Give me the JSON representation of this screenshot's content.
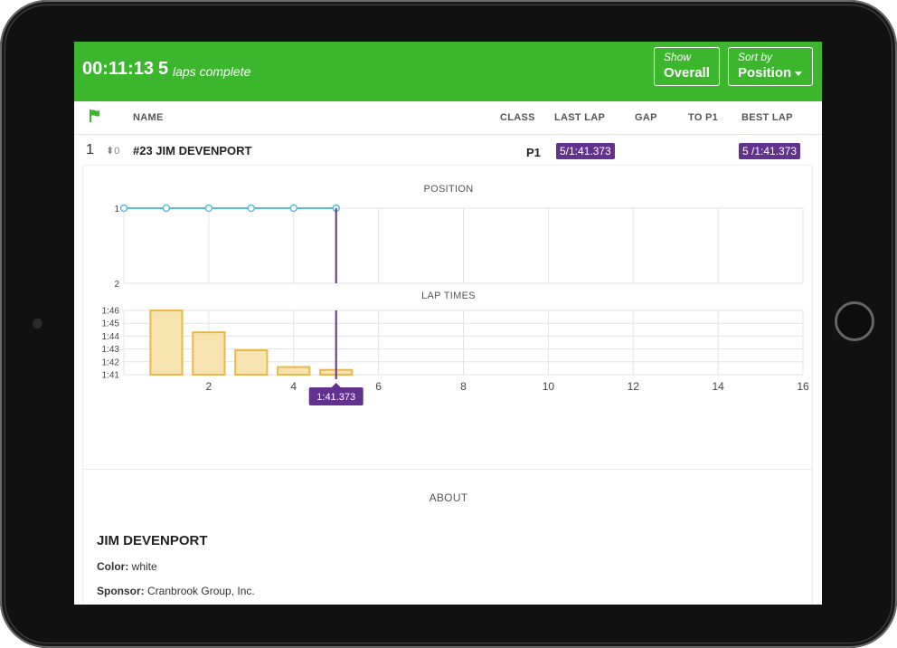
{
  "topbar": {
    "elapsed": "00:11:13",
    "laps_count": "5",
    "laps_label": "laps complete",
    "show_label": "Show",
    "show_value": "Overall",
    "sort_label": "Sort by",
    "sort_value": "Position"
  },
  "columns": {
    "name": "NAME",
    "class": "CLASS",
    "last_lap": "LAST LAP",
    "gap": "GAP",
    "to_p1": "TO P1",
    "best_lap": "BEST LAP"
  },
  "driver_row": {
    "position": "1",
    "delta": "0",
    "name": "#23 JIM DEVENPORT",
    "class": "P1",
    "last_lap": "5/1:41.373",
    "gap": "",
    "to_p1": "",
    "best_lap": "5 /1:41.373"
  },
  "colors": {
    "brand_green": "#3bb62d",
    "badge_purple": "#63318e",
    "position_line": "#5bbcd8",
    "bar_fill": "#f7e3b0",
    "bar_stroke": "#eab84a"
  },
  "chart_data": [
    {
      "type": "line",
      "title": "POSITION",
      "x": [
        0,
        1,
        2,
        3,
        4,
        5
      ],
      "y": [
        1,
        1,
        1,
        1,
        1,
        1
      ],
      "xlim": [
        0,
        16
      ],
      "ylim": [
        1,
        2
      ],
      "yticks": [
        "1",
        "2"
      ],
      "marker_x": 5
    },
    {
      "type": "bar",
      "title": "LAP TIMES",
      "x": [
        1,
        2,
        3,
        4,
        5
      ],
      "values": [
        106.0,
        104.3,
        102.9,
        101.6,
        101.373
      ],
      "yticks": [
        "1:41",
        "1:42",
        "1:43",
        "1:44",
        "1:45",
        "1:46"
      ],
      "ylim": [
        101,
        106
      ],
      "xticks": [
        "2",
        "4",
        "6",
        "8",
        "10",
        "12",
        "14",
        "16"
      ],
      "xlim": [
        0,
        16
      ],
      "marker_x": 5,
      "marker_label": "1:41.373"
    }
  ],
  "about": {
    "title": "ABOUT",
    "driver_name": "JIM DEVENPORT",
    "color_label": "Color:",
    "color_value": "white",
    "sponsor_label": "Sponsor:",
    "sponsor_value": "Cranbrook Group, Inc."
  }
}
